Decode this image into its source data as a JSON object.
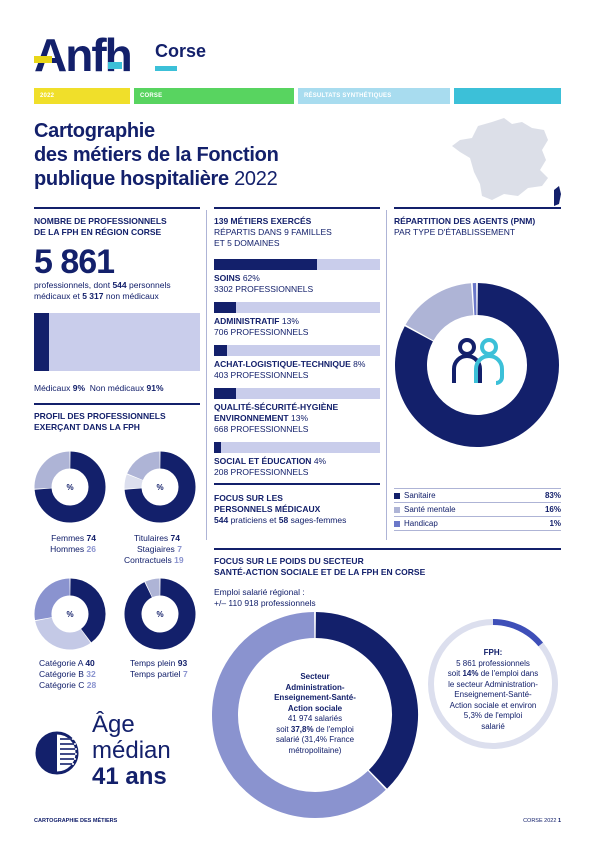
{
  "header": {
    "logo": "Anfh",
    "region": "Corse",
    "bands": [
      {
        "label": "2022",
        "color": "#f0df2a"
      },
      {
        "label": "CORSE",
        "color": "#58d460"
      },
      {
        "label": "RÉSULTATS SYNTHÉTIQUES",
        "color": "#a8dcef"
      },
      {
        "label": "",
        "color": "#3cc0d8"
      }
    ]
  },
  "title": {
    "line1": "Cartographie",
    "line2": "des métiers de la Fonction",
    "line3": "publique hospitalière",
    "year": "2022"
  },
  "professionnels": {
    "heading1": "NOMBRE DE PROFESSIONNELS",
    "heading2": "DE LA FPH EN RÉGION CORSE",
    "total": "5 861",
    "desc1": "professionnels, dont",
    "medicaux_count": "544",
    "desc2": "personnels",
    "desc3": "médicaux et",
    "non_medicaux_count": "5 317",
    "desc4": "non médicaux",
    "label_med": "Médicaux",
    "pct_med": "9%",
    "label_non_med": "Non médicaux",
    "pct_non_med": "91%",
    "share_med": 0.09
  },
  "profil": {
    "heading1": "PROFIL DES PROFESSIONNELS",
    "heading2": "EXERÇANT DANS LA FPH",
    "center": "%",
    "donuts": [
      {
        "id": "sexe",
        "rows": [
          {
            "label": "Femmes",
            "value": "74"
          },
          {
            "label": "Hommes",
            "value": "26"
          }
        ],
        "parts": [
          74,
          26
        ]
      },
      {
        "id": "statut",
        "rows": [
          {
            "label": "Titulaires",
            "value": "74"
          },
          {
            "label": "Stagiaires",
            "value": "7"
          },
          {
            "label": "Contractuels",
            "value": "19"
          }
        ],
        "parts": [
          74,
          7,
          19
        ]
      },
      {
        "id": "categorie",
        "rows": [
          {
            "label": "Catégorie A",
            "value": "40"
          },
          {
            "label": "Catégorie B",
            "value": "32"
          },
          {
            "label": "Catégorie C",
            "value": "28"
          }
        ],
        "parts": [
          40,
          32,
          28
        ]
      },
      {
        "id": "temps",
        "rows": [
          {
            "label": "Temps plein",
            "value": "93"
          },
          {
            "label": "Temps partiel",
            "value": "7"
          }
        ],
        "parts": [
          93,
          7
        ]
      }
    ]
  },
  "age": {
    "line1": "Âge",
    "line2": "médian",
    "line3": "41 ans"
  },
  "metiers": {
    "heading": "139 MÉTIERS EXERCÉS",
    "sub1": "RÉPARTIS DANS 9 FAMILLES",
    "sub2": "ET 5 DOMAINES",
    "items": [
      {
        "name": "SOINS",
        "pct": "62%",
        "count": "3302 PROFESSIONNELS",
        "share": 0.62
      },
      {
        "name": "ADMINISTRATIF",
        "pct": "13%",
        "count": "706 PROFESSIONNELS",
        "share": 0.13
      },
      {
        "name": "ACHAT-LOGISTIQUE-TECHNIQUE",
        "pct": "8%",
        "count": "403 PROFESSIONNELS",
        "share": 0.08
      },
      {
        "name": "QUALITÉ-SÉCURITÉ-HYGIÈNE ENVIRONNEMENT",
        "pct": "13%",
        "count": "668 PROFESSIONNELS",
        "share": 0.13
      },
      {
        "name": "SOCIAL ET ÉDUCATION",
        "pct": "4%",
        "count": "208 PROFESSIONNELS",
        "share": 0.04
      }
    ]
  },
  "repartition": {
    "heading": "RÉPARTITION DES AGENTS (PNM)",
    "sub": "PAR TYPE D'ÉTABLISSEMENT",
    "rows": [
      {
        "label": "Sanitaire",
        "value": "83%",
        "share": 83,
        "color": "#13206b"
      },
      {
        "label": "Santé mentale",
        "value": "16%",
        "share": 16,
        "color": "#aeb4d6"
      },
      {
        "label": "Handicap",
        "value": "1%",
        "share": 1,
        "color": "#6b78c9"
      }
    ]
  },
  "focus_med": {
    "heading1": "FOCUS SUR LES",
    "heading2": "PERSONNELS MÉDICAUX",
    "praticiens": "544",
    "t1": "praticiens et",
    "sages": "58",
    "t2": "sages-femmes"
  },
  "focus_social": {
    "heading1": "FOCUS SUR LE POIDS DU SECTEUR",
    "heading2": "SANTÉ-ACTION SOCIALE ET DE LA FPH EN CORSE",
    "emploi1": "Emploi salarié régional :",
    "emploi2": "+/– 110 918 professionnels",
    "big": {
      "t1": "Secteur",
      "t2": "Administration-",
      "t3": "Enseignement-Santé-",
      "t4": "Action sociale",
      "t5": "41 974 salariés",
      "t6a": "soit",
      "t6b": "37,8%",
      "t6c": "de l'emploi",
      "t7": "salarié (31,4% France",
      "t8": "métropolitaine)",
      "share": 37.8
    },
    "small": {
      "title": "FPH:",
      "t1": "5 861 professionnels",
      "t2a": "soit",
      "t2b": "14%",
      "t2c": "de l'emploi dans",
      "t3": "le secteur Administration-",
      "t4": "Enseignement-Santé-",
      "t5": "Action sociale et environ",
      "t6": "5,3% de l'emploi",
      "t7": "salarié",
      "share": 14
    }
  },
  "footer": {
    "left": "CARTOGRAPHIE DES MÉTIERS",
    "right": "CORSE 2022",
    "page": "1"
  }
}
